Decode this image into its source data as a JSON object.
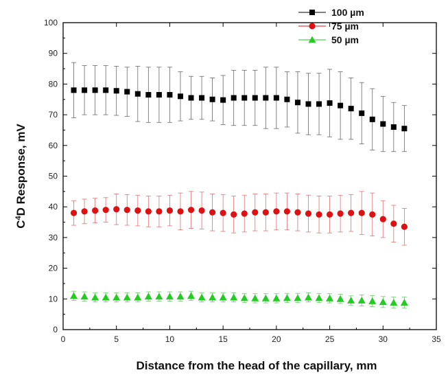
{
  "chart_data": {
    "type": "scatter",
    "xlabel": "Distance from the head of the capillary, mm",
    "ylabel_main": "C",
    "ylabel_sup": "4",
    "ylabel_rest": "D Response, mV",
    "xlim": [
      0,
      35
    ],
    "ylim": [
      0,
      100
    ],
    "xticks": [
      0,
      5,
      10,
      15,
      20,
      25,
      30,
      35
    ],
    "yticks": [
      0,
      10,
      20,
      30,
      40,
      50,
      60,
      70,
      80,
      90,
      100
    ],
    "grid": false,
    "legend_position": "top-right",
    "series": [
      {
        "name": "100 µm",
        "marker": "square",
        "color": "#000000",
        "x": [
          1,
          2,
          3,
          4,
          5,
          6,
          7,
          8,
          9,
          10,
          11,
          12,
          13,
          14,
          15,
          16,
          17,
          18,
          19,
          20,
          21,
          22,
          23,
          24,
          25,
          26,
          27,
          28,
          29,
          30,
          31,
          32
        ],
        "y": [
          78,
          78,
          78,
          78,
          77.8,
          77.5,
          76.8,
          76.5,
          76.5,
          76.5,
          76,
          75.5,
          75.5,
          75,
          74.8,
          75.5,
          75.5,
          75.5,
          75.5,
          75.5,
          75,
          74,
          73.5,
          73.5,
          73.8,
          73,
          72,
          70.5,
          68.5,
          67,
          66,
          65.5
        ],
        "err": [
          9,
          8,
          8,
          8,
          8,
          8,
          9,
          9,
          9,
          9,
          8,
          7,
          7,
          7,
          8,
          9,
          9,
          9,
          10,
          10,
          9,
          10,
          10,
          10,
          11,
          11,
          10,
          10,
          10,
          9,
          8,
          7.5
        ]
      },
      {
        "name": "75 µm",
        "marker": "circle",
        "color": "#dd1111",
        "x": [
          1,
          2,
          3,
          4,
          5,
          6,
          7,
          8,
          9,
          10,
          11,
          12,
          13,
          14,
          15,
          16,
          17,
          18,
          19,
          20,
          21,
          22,
          23,
          24,
          25,
          26,
          27,
          28,
          29,
          30,
          31,
          32
        ],
        "y": [
          38,
          38.5,
          38.8,
          39,
          39.2,
          39,
          38.8,
          38.5,
          38.5,
          38.8,
          38.5,
          39,
          38.8,
          38.2,
          38,
          37.5,
          37.8,
          38.2,
          38.2,
          38.5,
          38.5,
          38.2,
          37.8,
          37.5,
          37.5,
          37.8,
          38,
          38,
          37.5,
          36,
          34.5,
          33.5
        ],
        "err": [
          4,
          4,
          4,
          4,
          5,
          5,
          5,
          5,
          5,
          5,
          6,
          6,
          6,
          6,
          6,
          6,
          6,
          6,
          6,
          6,
          6,
          6,
          6,
          6,
          6,
          6,
          6,
          7,
          7,
          6,
          6,
          6
        ]
      },
      {
        "name": "50 µm",
        "marker": "triangle",
        "color": "#22cc22",
        "x": [
          1,
          2,
          3,
          4,
          5,
          6,
          7,
          8,
          9,
          10,
          11,
          12,
          13,
          14,
          15,
          16,
          17,
          18,
          19,
          20,
          21,
          22,
          23,
          24,
          25,
          26,
          27,
          28,
          29,
          30,
          31,
          32
        ],
        "y": [
          11,
          10.8,
          10.5,
          10.5,
          10.5,
          10.5,
          10.5,
          10.8,
          10.8,
          10.8,
          10.8,
          11,
          10.5,
          10.5,
          10.5,
          10.5,
          10.3,
          10.2,
          10.2,
          10.2,
          10.3,
          10.3,
          10.5,
          10.3,
          10.2,
          10,
          9.5,
          9.5,
          9.3,
          9,
          8.8,
          8.8
        ],
        "err": [
          1.5,
          1.5,
          1.5,
          1.5,
          1.5,
          1.5,
          1.5,
          1.5,
          1.5,
          1.5,
          1.5,
          1.5,
          1.5,
          1.5,
          1.5,
          1.5,
          1.5,
          1.5,
          1.5,
          1.5,
          1.5,
          1.5,
          1.5,
          1.5,
          1.5,
          1.5,
          1.5,
          1.8,
          1.8,
          1.8,
          1.8,
          1.8
        ]
      }
    ]
  }
}
